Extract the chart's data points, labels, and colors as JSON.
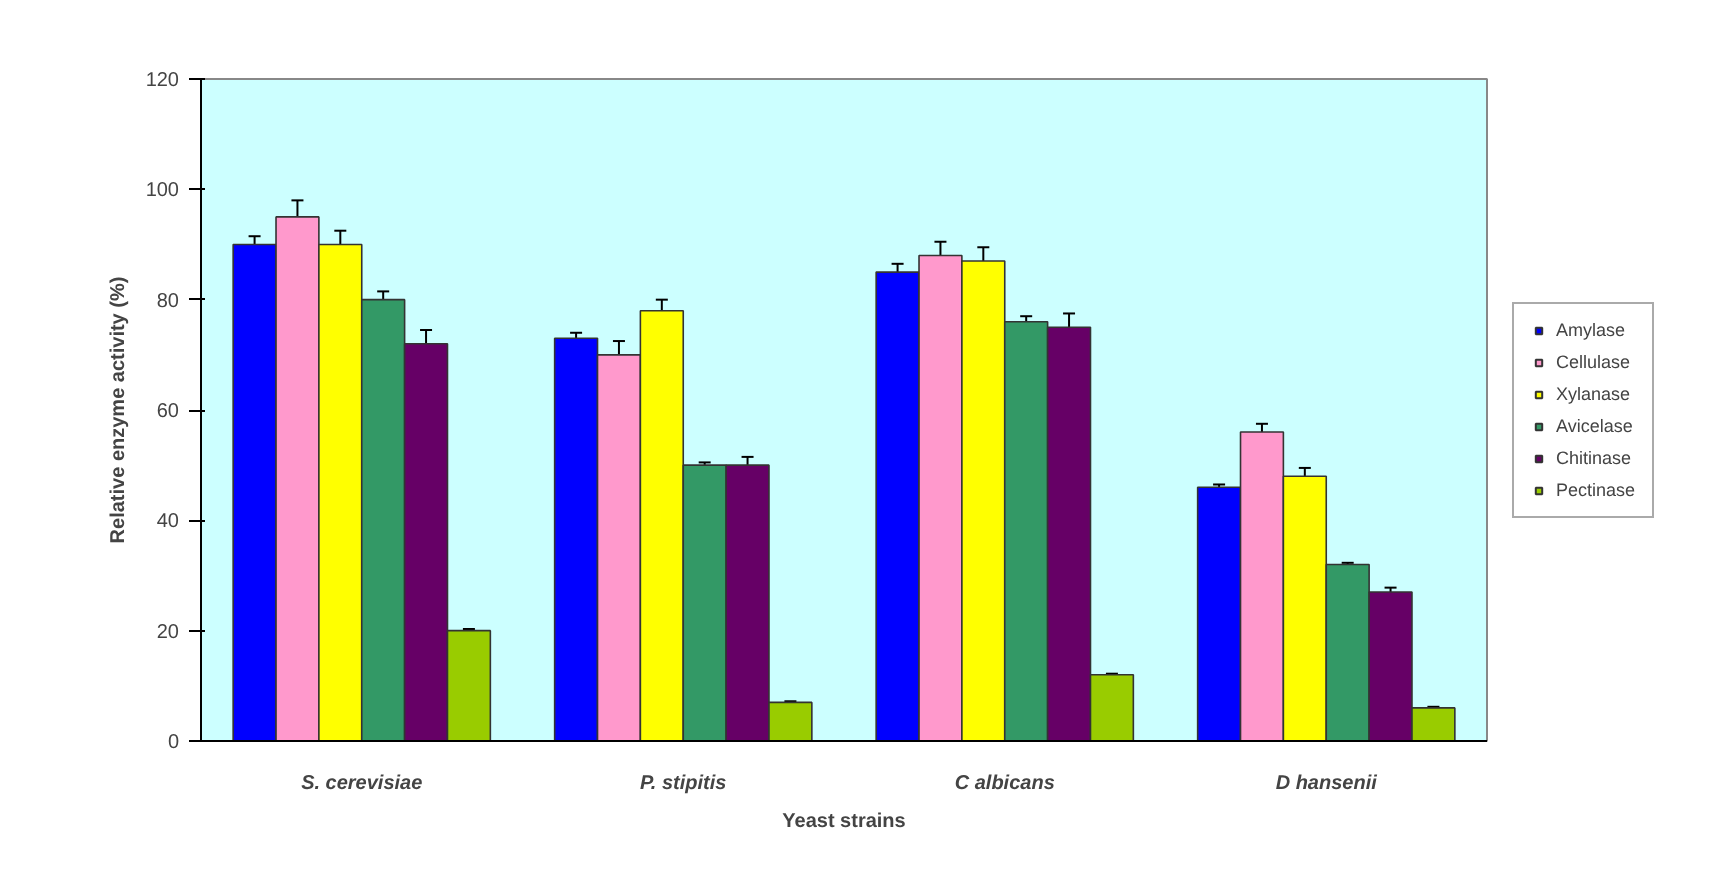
{
  "chart_data": {
    "type": "bar",
    "xlabel": "Yeast strains",
    "ylabel": "Relative enzyme activity (%)",
    "categories": [
      "S. cerevisiae",
      "P. stipitis",
      "C albicans",
      "D hansenii"
    ],
    "series": [
      {
        "name": "Amylase",
        "color": "#0000ff",
        "values": [
          90,
          73,
          85,
          46
        ],
        "errors": [
          1.5,
          1,
          1.5,
          0.5
        ]
      },
      {
        "name": "Cellulase",
        "color": "#ff99cc",
        "values": [
          95,
          70,
          88,
          56
        ],
        "errors": [
          3,
          2.5,
          2.5,
          1.5
        ]
      },
      {
        "name": "Xylanase",
        "color": "#ffff00",
        "values": [
          90,
          78,
          87,
          48
        ],
        "errors": [
          2.5,
          2,
          2.5,
          1.5
        ]
      },
      {
        "name": "Avicelase",
        "color": "#339966",
        "values": [
          80,
          50,
          76,
          32
        ],
        "errors": [
          1.5,
          0.5,
          1,
          0.3
        ]
      },
      {
        "name": "Chitinase",
        "color": "#660066",
        "values": [
          72,
          50,
          75,
          27
        ],
        "errors": [
          2.5,
          1.5,
          2.5,
          0.8
        ]
      },
      {
        "name": "Pectinase",
        "color": "#99cc00",
        "values": [
          20,
          7,
          12,
          6
        ],
        "errors": [
          0.3,
          0.2,
          0.2,
          0.2
        ]
      }
    ],
    "ylim": [
      0,
      120
    ],
    "yticks": [
      0,
      20,
      40,
      60,
      80,
      100,
      120
    ],
    "grid": false,
    "legend": "right"
  }
}
